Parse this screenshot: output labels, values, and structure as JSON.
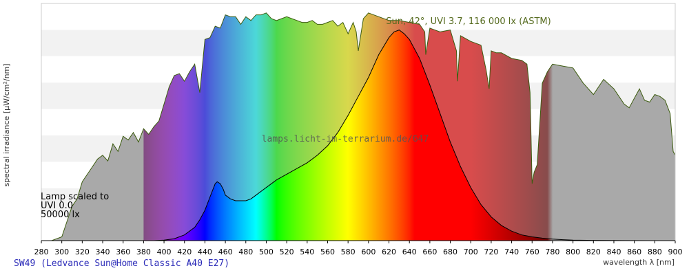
{
  "chart_data": {
    "type": "area",
    "ylabel": "spectral irradiance [µW/cm²/nm]",
    "xlabel": "wavelength λ [nm]",
    "xlim": [
      280,
      900
    ],
    "x_ticks": [
      280,
      300,
      320,
      340,
      360,
      380,
      400,
      420,
      440,
      460,
      480,
      500,
      520,
      540,
      560,
      580,
      600,
      620,
      640,
      660,
      680,
      700,
      720,
      740,
      760,
      780,
      800,
      820,
      840,
      860,
      880,
      900
    ],
    "y_tick_labels_shown": false,
    "grid": "horizontal bands",
    "reference": {
      "name": "Sun, 42°, UVI 3.7, 116 000 lx (ASTM)",
      "x": [
        280,
        290,
        300,
        305,
        310,
        315,
        320,
        325,
        330,
        335,
        340,
        345,
        350,
        355,
        360,
        365,
        370,
        375,
        380,
        385,
        390,
        395,
        400,
        405,
        410,
        415,
        420,
        425,
        430,
        435,
        440,
        445,
        450,
        455,
        460,
        465,
        470,
        475,
        480,
        485,
        490,
        495,
        500,
        505,
        510,
        515,
        520,
        525,
        530,
        535,
        540,
        545,
        550,
        555,
        560,
        565,
        570,
        575,
        580,
        585,
        588,
        590,
        595,
        600,
        610,
        620,
        630,
        640,
        650,
        655,
        656,
        660,
        670,
        680,
        686,
        687,
        690,
        700,
        710,
        715,
        718,
        720,
        725,
        730,
        740,
        750,
        755,
        758,
        760,
        762,
        765,
        770,
        775,
        780,
        790,
        800,
        810,
        820,
        830,
        840,
        850,
        855,
        860,
        865,
        870,
        875,
        880,
        885,
        890,
        895,
        898,
        900
      ],
      "y": [
        0,
        0,
        2,
        10,
        18,
        22,
        31,
        35,
        39,
        43,
        45,
        42,
        51,
        47,
        55,
        53,
        57,
        52,
        59,
        56,
        60,
        63,
        72,
        81,
        87,
        88,
        84,
        89,
        93,
        78,
        106,
        107,
        113,
        112,
        119,
        118,
        118,
        114,
        118,
        116,
        119,
        119,
        120,
        117,
        116,
        117,
        118,
        117,
        116,
        115,
        115,
        116,
        114,
        114,
        115,
        116,
        113,
        115,
        109,
        115,
        110,
        100,
        117,
        120,
        118,
        116,
        116,
        115,
        114,
        110,
        98,
        112,
        110,
        111,
        100,
        84,
        108,
        105,
        103,
        90,
        80,
        100,
        99,
        99,
        96,
        95,
        93,
        78,
        30,
        36,
        40,
        83,
        89,
        93,
        92,
        91,
        83,
        77,
        85,
        80,
        72,
        70,
        75,
        80,
        74,
        73,
        77,
        76,
        74,
        67,
        47,
        45
      ]
    },
    "series": [
      {
        "name": "SW49 (Ledvance Sun@Home Classic A40 E27)",
        "x": [
          380,
          390,
          400,
          410,
          420,
          430,
          435,
          440,
          445,
          450,
          452,
          455,
          458,
          460,
          465,
          470,
          475,
          480,
          485,
          490,
          500,
          510,
          520,
          530,
          540,
          550,
          560,
          570,
          580,
          590,
          600,
          610,
          620,
          625,
          630,
          635,
          640,
          650,
          660,
          670,
          680,
          690,
          700,
          710,
          720,
          730,
          740,
          750,
          760,
          770,
          780,
          790,
          800,
          820,
          850,
          880,
          900
        ],
        "y": [
          0,
          0,
          0.3,
          1,
          3,
          7,
          11,
          16,
          23,
          30,
          31,
          30,
          27,
          24,
          22,
          21,
          21,
          21,
          22,
          24,
          28,
          32,
          35,
          38,
          41,
          45,
          50,
          57,
          66,
          76,
          86,
          98,
          107,
          110,
          111,
          109,
          106,
          96,
          82,
          67,
          52,
          39,
          28,
          19,
          12.5,
          8,
          5,
          3,
          2,
          1.3,
          0.8,
          0.5,
          0.3,
          0.15,
          0.05,
          0,
          0
        ]
      }
    ],
    "annotations": [
      "Lamp scaled to",
      "UVI 0.0",
      "50000 lx",
      "lamps.licht-im-terrarium.de/647"
    ]
  }
}
